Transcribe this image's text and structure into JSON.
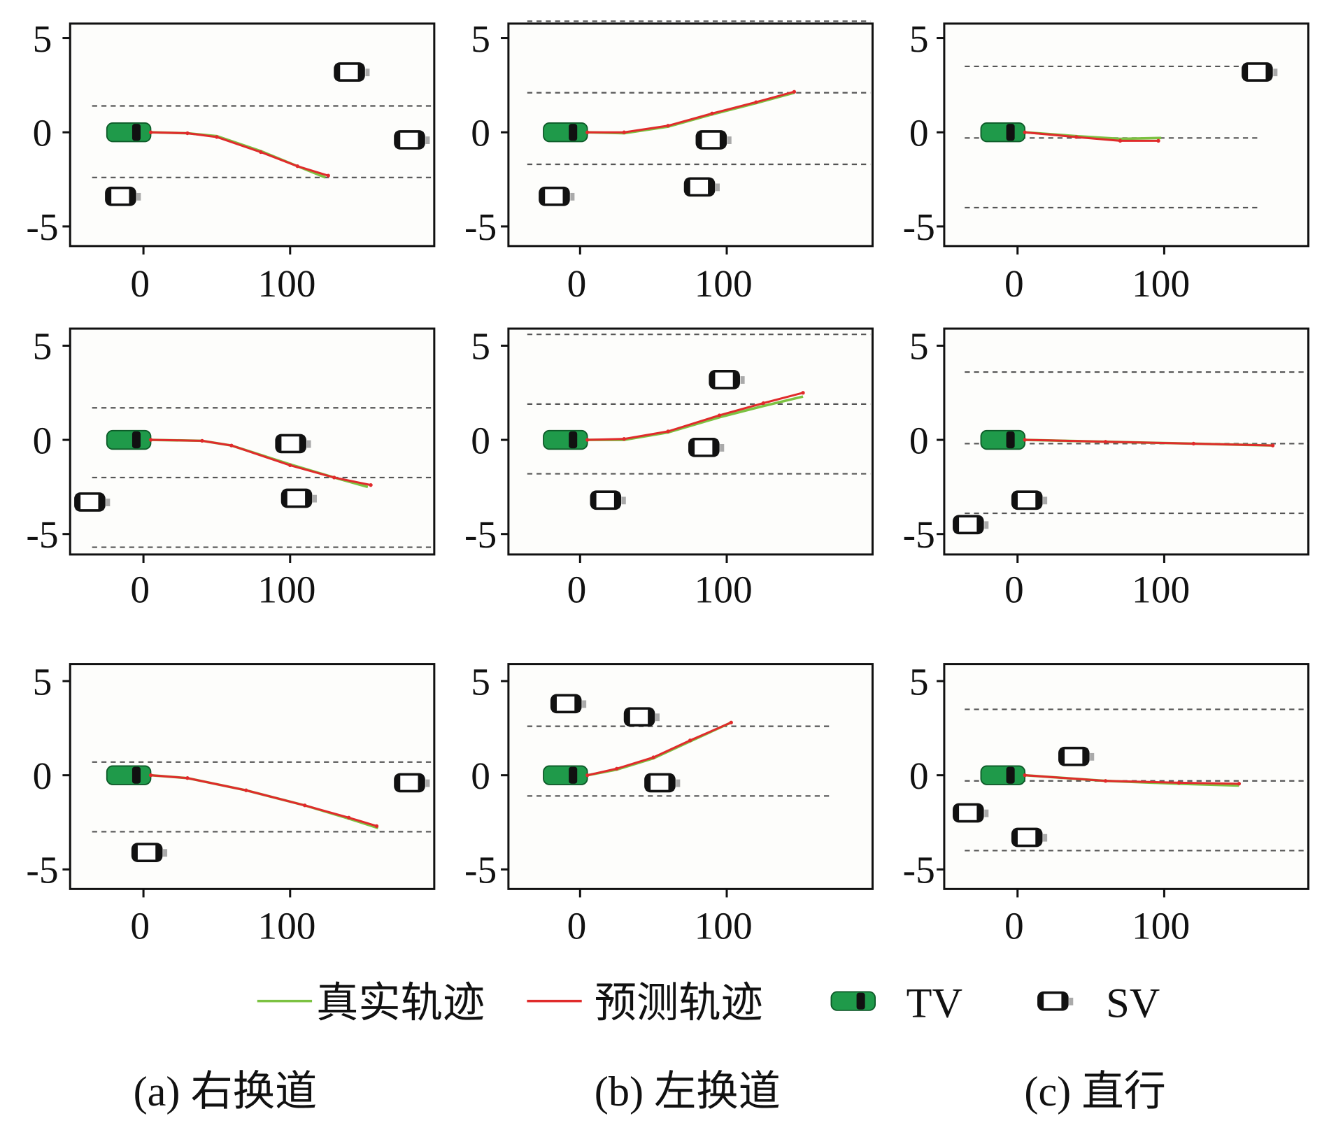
{
  "chart_data": {
    "type": "line",
    "x_ticks": [
      "0",
      "100"
    ],
    "y_ticks": [
      "5",
      "0",
      "-5"
    ],
    "xlim": [
      -50,
      198
    ],
    "ylim": [
      -6.1,
      5.8
    ],
    "grid": false,
    "colors": {
      "true_traj": "#7cc242",
      "pred_traj": "#e02b2b",
      "tv": "#1f9a4a",
      "lane": "#555555",
      "plot_bg": "#fdfdfb"
    },
    "legend": {
      "placement": "bottom",
      "items": [
        {
          "label": "真实轨迹",
          "kind": "true-line"
        },
        {
          "label": "预测轨迹",
          "kind": "pred-line"
        },
        {
          "label": "TV",
          "kind": "tv-car"
        },
        {
          "label": "SV",
          "kind": "sv-car"
        }
      ]
    },
    "captions": [
      "(a) 右换道",
      "(b) 左换道",
      "(c) 直行"
    ],
    "panels": [
      {
        "id": "a1",
        "col": 0,
        "row": 0,
        "lanes": [
          1.4,
          -2.4
        ],
        "lane_x": [
          -35,
          198
        ],
        "tv": [
          -10,
          0
        ],
        "sv": [
          [
            141,
            3.2
          ],
          [
            182,
            -0.4
          ],
          [
            -15,
            -3.4
          ]
        ],
        "true": [
          [
            5,
            0
          ],
          [
            30,
            -0.05
          ],
          [
            50,
            -0.2
          ],
          [
            80,
            -1.0
          ],
          [
            105,
            -1.8
          ],
          [
            124,
            -2.4
          ]
        ],
        "pred": [
          [
            5,
            0
          ],
          [
            30,
            -0.05
          ],
          [
            50,
            -0.25
          ],
          [
            80,
            -1.05
          ],
          [
            105,
            -1.8
          ],
          [
            126,
            -2.3
          ]
        ]
      },
      {
        "id": "a2",
        "col": 0,
        "row": 1,
        "lanes": [
          1.7,
          -2.0,
          -5.7
        ],
        "lane_x": [
          -35,
          198
        ],
        "tv": [
          -10,
          0
        ],
        "sv": [
          [
            101,
            -0.2
          ],
          [
            105,
            -3.1
          ],
          [
            -36,
            -3.3
          ]
        ],
        "true": [
          [
            5,
            0
          ],
          [
            40,
            -0.05
          ],
          [
            60,
            -0.3
          ],
          [
            100,
            -1.3
          ],
          [
            130,
            -2.0
          ],
          [
            153,
            -2.5
          ]
        ],
        "pred": [
          [
            5,
            0
          ],
          [
            40,
            -0.05
          ],
          [
            60,
            -0.3
          ],
          [
            100,
            -1.35
          ],
          [
            130,
            -2.0
          ],
          [
            155,
            -2.4
          ]
        ]
      },
      {
        "id": "a3",
        "col": 0,
        "row": 2,
        "lanes": [
          0.7,
          -3.0
        ],
        "lane_x": [
          -35,
          198
        ],
        "tv": [
          -10,
          0
        ],
        "sv": [
          [
            182,
            -0.4
          ],
          [
            3,
            -4.1
          ]
        ],
        "true": [
          [
            5,
            0
          ],
          [
            30,
            -0.15
          ],
          [
            70,
            -0.8
          ],
          [
            110,
            -1.6
          ],
          [
            140,
            -2.3
          ],
          [
            160,
            -2.8
          ]
        ],
        "pred": [
          [
            5,
            0
          ],
          [
            30,
            -0.15
          ],
          [
            70,
            -0.8
          ],
          [
            110,
            -1.6
          ],
          [
            140,
            -2.25
          ],
          [
            159,
            -2.7
          ]
        ]
      },
      {
        "id": "b1",
        "col": 1,
        "row": 0,
        "lanes": [
          5.9,
          2.1,
          -1.7
        ],
        "lane_x": [
          -36,
          198
        ],
        "tv": [
          -10,
          0
        ],
        "sv": [
          [
            90,
            -0.4
          ],
          [
            82,
            -2.9
          ],
          [
            -17,
            -3.4
          ]
        ],
        "true": [
          [
            5,
            0
          ],
          [
            30,
            -0.05
          ],
          [
            60,
            0.3
          ],
          [
            90,
            0.95
          ],
          [
            120,
            1.55
          ],
          [
            146,
            2.1
          ]
        ],
        "pred": [
          [
            5,
            0
          ],
          [
            30,
            0
          ],
          [
            60,
            0.35
          ],
          [
            90,
            1.0
          ],
          [
            120,
            1.6
          ],
          [
            146,
            2.15
          ]
        ]
      },
      {
        "id": "b2",
        "col": 1,
        "row": 1,
        "lanes": [
          5.6,
          1.9,
          -1.8
        ],
        "lane_x": [
          -36,
          198
        ],
        "tv": [
          -10,
          0
        ],
        "sv": [
          [
            99,
            3.2
          ],
          [
            85,
            -0.4
          ],
          [
            18,
            -3.2
          ]
        ],
        "true": [
          [
            5,
            0
          ],
          [
            30,
            0.0
          ],
          [
            60,
            0.4
          ],
          [
            95,
            1.2
          ],
          [
            125,
            1.8
          ],
          [
            152,
            2.3
          ]
        ],
        "pred": [
          [
            5,
            0
          ],
          [
            30,
            0.05
          ],
          [
            60,
            0.45
          ],
          [
            95,
            1.3
          ],
          [
            125,
            1.95
          ],
          [
            152,
            2.5
          ]
        ]
      },
      {
        "id": "b3",
        "col": 1,
        "row": 2,
        "lanes": [
          2.6,
          -1.1
        ],
        "lane_x": [
          -36,
          172
        ],
        "tv": [
          -10,
          0
        ],
        "sv": [
          [
            -9,
            3.8
          ],
          [
            41,
            3.1
          ],
          [
            55,
            -0.4
          ]
        ],
        "true": [
          [
            5,
            0
          ],
          [
            25,
            0.3
          ],
          [
            50,
            0.9
          ],
          [
            75,
            1.8
          ],
          [
            103,
            2.8
          ]
        ],
        "pred": [
          [
            5,
            0
          ],
          [
            25,
            0.35
          ],
          [
            50,
            0.95
          ],
          [
            75,
            1.85
          ],
          [
            103,
            2.8
          ]
        ]
      },
      {
        "id": "c1",
        "col": 2,
        "row": 0,
        "lanes": [
          3.5,
          -0.3,
          -4.0
        ],
        "lane_x": [
          -36,
          165
        ],
        "tv": [
          -10,
          0
        ],
        "sv": [
          [
            164,
            3.2
          ]
        ],
        "true": [
          [
            5,
            0
          ],
          [
            40,
            -0.2
          ],
          [
            70,
            -0.35
          ],
          [
            98,
            -0.3
          ]
        ],
        "pred": [
          [
            5,
            0
          ],
          [
            40,
            -0.25
          ],
          [
            70,
            -0.45
          ],
          [
            96,
            -0.45
          ]
        ]
      },
      {
        "id": "c2",
        "col": 2,
        "row": 1,
        "lanes": [
          3.6,
          -0.2,
          -3.9
        ],
        "lane_x": [
          -36,
          198
        ],
        "tv": [
          -10,
          0
        ],
        "sv": [
          [
            7,
            -3.2
          ],
          [
            -33,
            -4.5
          ]
        ],
        "true": [
          [
            5,
            0
          ],
          [
            60,
            -0.1
          ],
          [
            120,
            -0.2
          ],
          [
            174,
            -0.3
          ]
        ],
        "pred": [
          [
            5,
            0
          ],
          [
            60,
            -0.1
          ],
          [
            120,
            -0.2
          ],
          [
            174,
            -0.3
          ]
        ]
      },
      {
        "id": "c3",
        "col": 2,
        "row": 2,
        "lanes": [
          3.5,
          -0.3,
          -4.0
        ],
        "lane_x": [
          -36,
          198
        ],
        "tv": [
          -10,
          0
        ],
        "sv": [
          [
            39,
            1.0
          ],
          [
            -33,
            -2.0
          ],
          [
            7,
            -3.3
          ]
        ],
        "true": [
          [
            5,
            0
          ],
          [
            60,
            -0.3
          ],
          [
            110,
            -0.45
          ],
          [
            151,
            -0.55
          ]
        ],
        "pred": [
          [
            5,
            0
          ],
          [
            60,
            -0.3
          ],
          [
            110,
            -0.4
          ],
          [
            151,
            -0.45
          ]
        ]
      }
    ]
  }
}
